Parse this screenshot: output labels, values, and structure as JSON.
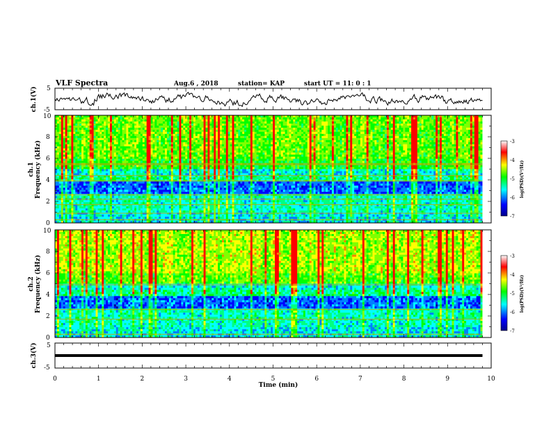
{
  "header": {
    "title": "VLF Spectra",
    "date": "Aug.6 , 2018",
    "station": "station= KAP",
    "start_time": "start UT = 11: 0 : 1"
  },
  "x_axis": {
    "label": "Time (min)",
    "range": [
      0,
      10
    ],
    "ticks": [
      "0",
      "1",
      "2",
      "3",
      "4",
      "5",
      "6",
      "7",
      "8",
      "9",
      "10"
    ]
  },
  "panels": {
    "ch1_wave": {
      "ylabel": "ch.1(V)",
      "yticks": [
        "5",
        "-5"
      ],
      "ylim": [
        -5,
        5
      ]
    },
    "ch1_spec": {
      "ylabel": "ch.1\nFrequency (kHz)",
      "ylabel_line1": "ch.1",
      "ylabel_line2": "Frequency (kHz)",
      "yticks": [
        "0",
        "2",
        "4",
        "6",
        "8",
        "10"
      ],
      "ylim": [
        0,
        10
      ]
    },
    "ch2_spec": {
      "ylabel_line1": "ch.2",
      "ylabel_line2": "Frequency (kHz)",
      "yticks": [
        "0",
        "2",
        "4",
        "6",
        "8",
        "10"
      ],
      "ylim": [
        0,
        10
      ]
    },
    "ch3_wave": {
      "ylabel": "ch.3(V)",
      "yticks": [
        "5",
        "-5"
      ],
      "ylim": [
        -5,
        5
      ]
    }
  },
  "colorbar": {
    "label": "log(PSD)(V²/Hz)",
    "ticks": [
      "-3",
      "-4",
      "-5",
      "-6",
      "-7"
    ],
    "range": [
      -7,
      -3
    ],
    "colors": [
      "#00008b",
      "#0000ff",
      "#00ffff",
      "#00ff00",
      "#ffff00",
      "#ff0000",
      "#ffffff"
    ]
  },
  "chart_data": [
    {
      "type": "line",
      "name_ref": "ch.1(V)",
      "x_range_min": [
        0,
        9.8
      ],
      "ylim": [
        -5,
        5
      ],
      "y_description_values": [
        -1.0,
        1.2,
        -0.5,
        0.8,
        -2.0,
        0.5,
        -1.5,
        1.0,
        -0.8,
        0.3,
        -1.2,
        0.9
      ]
    },
    {
      "type": "heatmap",
      "name_ref": "ch.1",
      "x_range_min": [
        0,
        9.8
      ],
      "y_range_khz": [
        0,
        10
      ],
      "z_range_log_psd": [
        -7,
        -3
      ],
      "horizontal_lines_khz": [
        0.3,
        0.9,
        1.7,
        2.2,
        2.6,
        3.9,
        4.4,
        5.4,
        5.5
      ]
    },
    {
      "type": "heatmap",
      "name_ref": "ch.2",
      "x_range_min": [
        0,
        9.8
      ],
      "y_range_khz": [
        0,
        10
      ],
      "z_range_log_psd": [
        -7,
        -3
      ],
      "horizontal_lines_khz": [
        0.3,
        1.7,
        2.6,
        4.9
      ]
    },
    {
      "type": "line",
      "name_ref": "ch.3(V)",
      "x_range_min": [
        0,
        9.8
      ],
      "ylim": [
        -5,
        5
      ],
      "y_constant": 0
    }
  ]
}
